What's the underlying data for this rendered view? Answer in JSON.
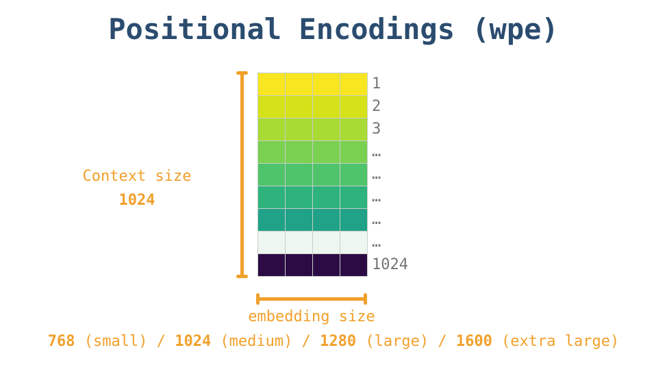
{
  "title": "Positional Encodings (wpe)",
  "colors": {
    "title": "#2b4c6f",
    "accent": "#f1a02b",
    "row_label": "#757575",
    "grid_border": "#c7cec8"
  },
  "grid": {
    "columns": 4,
    "rows": [
      {
        "label": "1",
        "color": "#f8e621"
      },
      {
        "label": "2",
        "color": "#d5e21a"
      },
      {
        "label": "3",
        "color": "#a8db34"
      },
      {
        "label": "…",
        "color": "#7ad151"
      },
      {
        "label": "…",
        "color": "#4fc46a"
      },
      {
        "label": "…",
        "color": "#2eb37d"
      },
      {
        "label": "…",
        "color": "#1fa287"
      },
      {
        "label": "…",
        "color": "#edf6ef"
      },
      {
        "label": "1024",
        "color": "#2c0b44"
      }
    ]
  },
  "left_annotation": {
    "line1": "Context size",
    "line2": "1024"
  },
  "bottom_annotation": {
    "label": "embedding size"
  },
  "footer": {
    "segments": [
      {
        "number": "768",
        "text": " (small) / "
      },
      {
        "number": "1024",
        "text": " (medium) / "
      },
      {
        "number": "1280",
        "text": " (large) / "
      },
      {
        "number": "1600",
        "text": " (extra large)"
      }
    ]
  }
}
